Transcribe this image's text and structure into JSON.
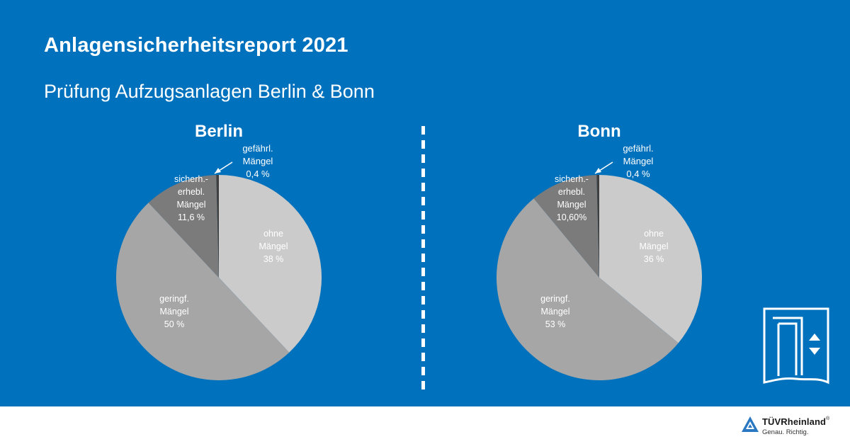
{
  "header": {
    "title": "Anlagensicherheitsreport 2021",
    "subtitle": "Prüfung Aufzugsanlagen Berlin & Bonn"
  },
  "colors": {
    "background": "#0071bc",
    "ohne": "#cbcbcb",
    "geringf": "#a6a6a6",
    "sicherh": "#7b7b7b",
    "gefaehrl": "#3f3f3f"
  },
  "chart_data": [
    {
      "type": "pie",
      "title": "Berlin",
      "slices": [
        {
          "key": "ohne",
          "value": 38,
          "label_lines": [
            "ohne",
            "Mängel",
            "38 %"
          ]
        },
        {
          "key": "geringf",
          "value": 50,
          "label_lines": [
            "geringf.",
            "Mängel",
            "50 %"
          ]
        },
        {
          "key": "sicherh",
          "value": 11.6,
          "label_lines": [
            "sicherh.-",
            "erhebl.",
            "Mängel",
            "11,6 %"
          ]
        },
        {
          "key": "gefaehrl",
          "value": 0.4,
          "label_lines": [
            "gefährl.",
            "Mängel",
            "0,4 %"
          ]
        }
      ]
    },
    {
      "type": "pie",
      "title": "Bonn",
      "slices": [
        {
          "key": "ohne",
          "value": 36,
          "label_lines": [
            "ohne",
            "Mängel",
            "36 %"
          ]
        },
        {
          "key": "geringf",
          "value": 53,
          "label_lines": [
            "geringf.",
            "Mängel",
            "53 %"
          ]
        },
        {
          "key": "sicherh",
          "value": 10.6,
          "label_lines": [
            "sicherh.-",
            "erhebl.",
            "Mängel",
            "10,60%"
          ]
        },
        {
          "key": "gefaehrl",
          "value": 0.4,
          "label_lines": [
            "gefährl.",
            "Mängel",
            "0,4 %"
          ]
        }
      ]
    }
  ],
  "logo": {
    "brand": "TÜVRheinland",
    "registered": "®",
    "tagline": "Genau. Richtig."
  },
  "icons": {
    "elevator": "elevator-icon",
    "logo": "tuv-triangle-icon"
  }
}
